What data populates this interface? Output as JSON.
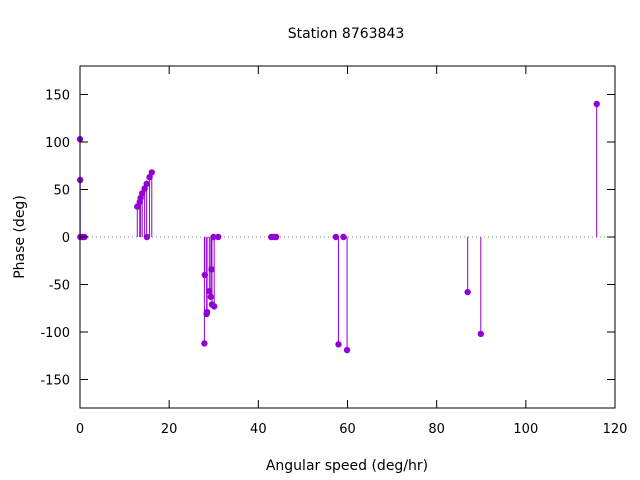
{
  "chart_data": {
    "type": "scatter",
    "style": "impulses-with-points",
    "title": "Station 8763843",
    "xlabel": "Angular speed (deg/hr)",
    "ylabel": "Phase (deg)",
    "xlim": [
      0,
      120
    ],
    "ylim": [
      -180,
      180
    ],
    "xticks": [
      0,
      20,
      40,
      60,
      80,
      100,
      120
    ],
    "yticks": [
      -150,
      -100,
      -50,
      0,
      50,
      100,
      150
    ],
    "grid": false,
    "zero_line": true,
    "color": "#9400d3",
    "points": [
      {
        "x": 0.0,
        "y": 103
      },
      {
        "x": 0.04,
        "y": 60
      },
      {
        "x": 0.08,
        "y": 0
      },
      {
        "x": 0.55,
        "y": 0
      },
      {
        "x": 1.0,
        "y": 0
      },
      {
        "x": 12.85,
        "y": 32
      },
      {
        "x": 13.4,
        "y": 37
      },
      {
        "x": 13.6,
        "y": 41
      },
      {
        "x": 13.95,
        "y": 46
      },
      {
        "x": 14.5,
        "y": 51
      },
      {
        "x": 14.95,
        "y": 56
      },
      {
        "x": 15.0,
        "y": 0
      },
      {
        "x": 15.6,
        "y": 63
      },
      {
        "x": 16.1,
        "y": 68
      },
      {
        "x": 27.9,
        "y": -112
      },
      {
        "x": 28.0,
        "y": -40
      },
      {
        "x": 28.4,
        "y": -81
      },
      {
        "x": 28.5,
        "y": -79
      },
      {
        "x": 29.0,
        "y": -57
      },
      {
        "x": 29.35,
        "y": -63
      },
      {
        "x": 29.5,
        "y": -34
      },
      {
        "x": 29.6,
        "y": -71
      },
      {
        "x": 29.95,
        "y": 0
      },
      {
        "x": 30.1,
        "y": -73
      },
      {
        "x": 31.0,
        "y": 0
      },
      {
        "x": 42.9,
        "y": 0
      },
      {
        "x": 43.5,
        "y": 0
      },
      {
        "x": 44.0,
        "y": 0
      },
      {
        "x": 57.4,
        "y": 0
      },
      {
        "x": 57.97,
        "y": -113
      },
      {
        "x": 59.1,
        "y": 0
      },
      {
        "x": 59.9,
        "y": -119
      },
      {
        "x": 86.95,
        "y": -58
      },
      {
        "x": 89.9,
        "y": -102
      },
      {
        "x": 115.9,
        "y": 140
      }
    ]
  }
}
